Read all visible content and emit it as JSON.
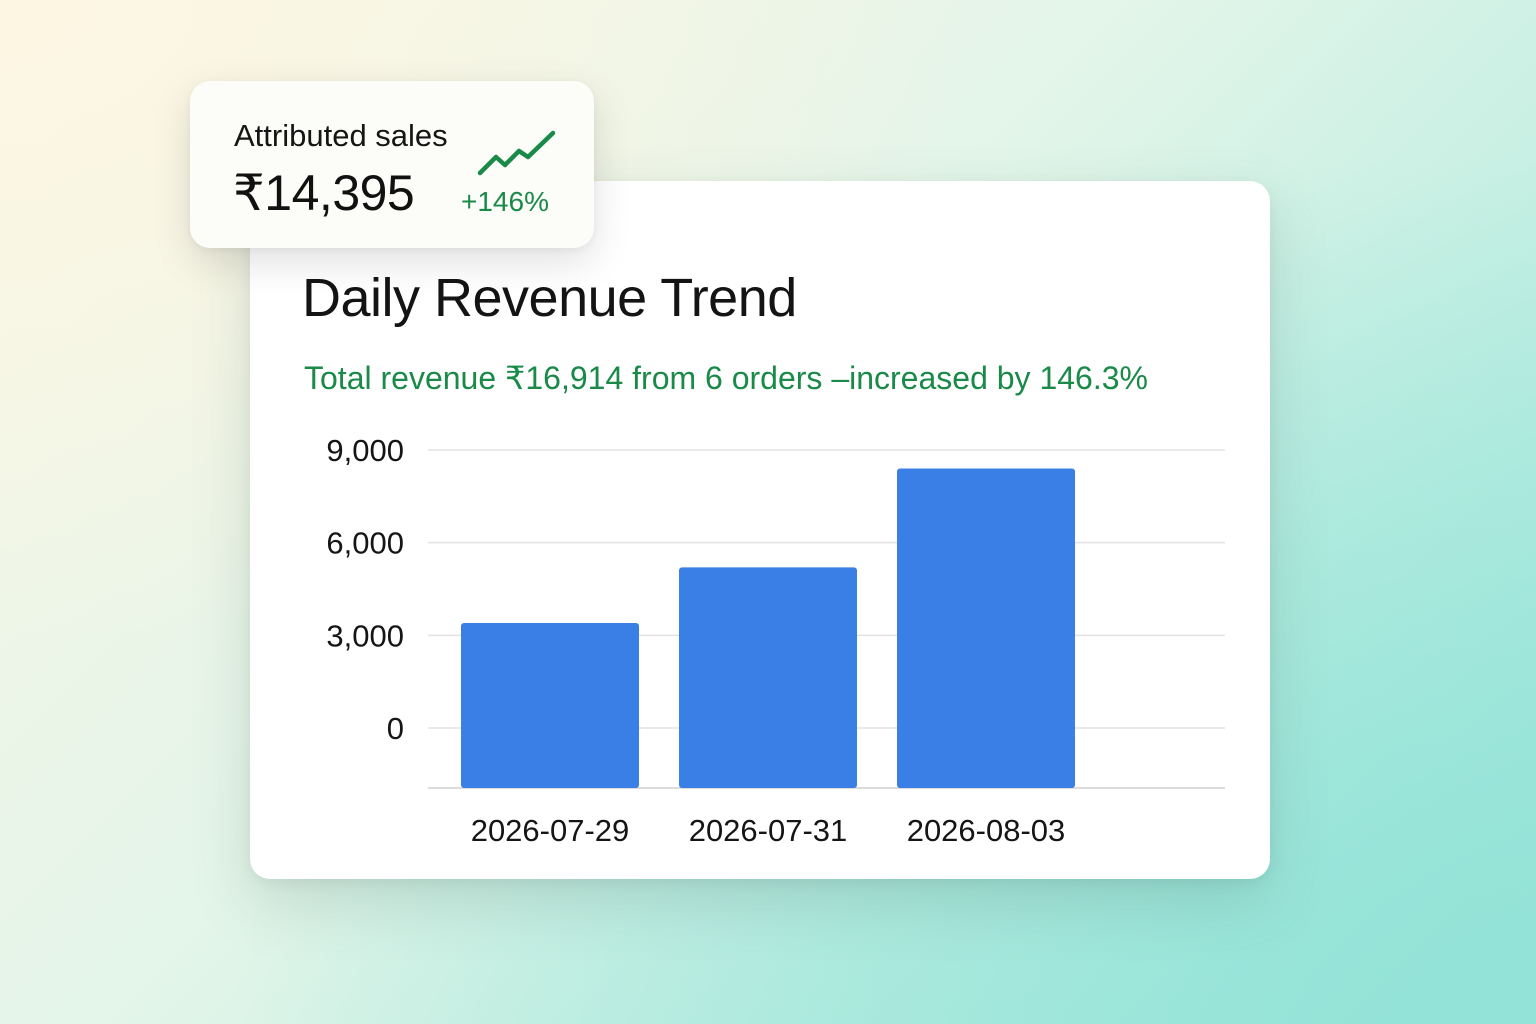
{
  "kpi": {
    "label": "Attributed sales",
    "value": "₹14,395",
    "change": "+146%",
    "icon": "trend-up-icon",
    "change_color": "#1a8a48"
  },
  "chart_data": {
    "type": "bar",
    "title": "Daily Revenue Trend",
    "subtitle": "Total revenue ₹16,914 from 6 orders –increased by 146.3%",
    "categories": [
      "2026-07-29",
      "2026-07-31",
      "2026-08-03"
    ],
    "values": [
      3400,
      5200,
      8400
    ],
    "y_ticks": [
      "9,000",
      "6,000",
      "3,000",
      "0"
    ],
    "y_tick_values": [
      9000,
      6000,
      3000,
      0
    ],
    "xlabel": "",
    "ylabel": "",
    "ylim": [
      0,
      9000
    ],
    "grid": true,
    "legend": "none",
    "bar_color": "#3a7fe6",
    "subtitle_color": "#1a8a48"
  }
}
